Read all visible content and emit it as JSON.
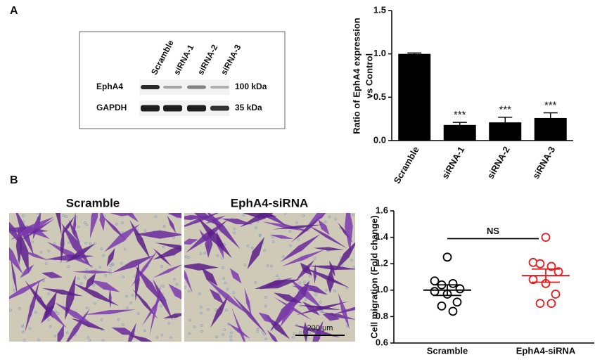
{
  "panel_a": {
    "label": "A",
    "blot": {
      "lanes": [
        "Scramble",
        "siRNA-1",
        "siRNA-2",
        "siRNA-3"
      ],
      "rows": [
        {
          "name": "EphA4",
          "size": "100 kDa"
        },
        {
          "name": "GAPDH",
          "size": "35 kDa"
        }
      ]
    }
  },
  "panel_b": {
    "label": "B",
    "images": [
      "Scramble",
      "EphA4-siRNA"
    ],
    "scale_bar": "200 μm"
  },
  "chart_data": [
    {
      "type": "bar",
      "ylabel": [
        "Ratio of EphA4 expression",
        "vs Control"
      ],
      "categories": [
        "Scramble",
        "siRNA-1",
        "siRNA-2",
        "siRNA-3"
      ],
      "values": [
        1.0,
        0.18,
        0.21,
        0.26
      ],
      "errors": [
        0.01,
        0.03,
        0.06,
        0.06
      ],
      "annotations": [
        null,
        "***",
        "***",
        "***"
      ],
      "color": "#000000",
      "ylim": [
        0,
        1.5
      ],
      "yticks": [
        {
          "value": 0,
          "label": "0.0"
        },
        0.5,
        {
          "value": 1,
          "label": "1.0"
        },
        1.5
      ]
    },
    {
      "type": "scatter",
      "ylabel": "Cell migration (Fold change)",
      "categories": [
        "Scramble",
        "EphA4-siRNA"
      ],
      "series": [
        {
          "name": "Scramble",
          "color": "#000000",
          "values": [
            1.25,
            1.07,
            1.04,
            1.05,
            1.01,
            0.99,
            0.97,
            0.91,
            0.88,
            0.84
          ]
        },
        {
          "name": "EphA4-siRNA",
          "color": "#e8191d",
          "values": [
            1.4,
            1.21,
            1.2,
            1.18,
            1.14,
            1.08,
            1.05,
            0.97,
            0.9,
            0.9
          ]
        }
      ],
      "means": [
        1.0,
        1.11
      ],
      "sems": [
        0.04,
        0.05
      ],
      "significance": {
        "label": "NS",
        "y": 1.39
      },
      "ylim": [
        0.6,
        1.6
      ],
      "yticks": [
        0.6,
        0.8,
        {
          "value": 1,
          "label": "1.0"
        },
        1.2,
        1.4,
        1.6
      ]
    }
  ]
}
